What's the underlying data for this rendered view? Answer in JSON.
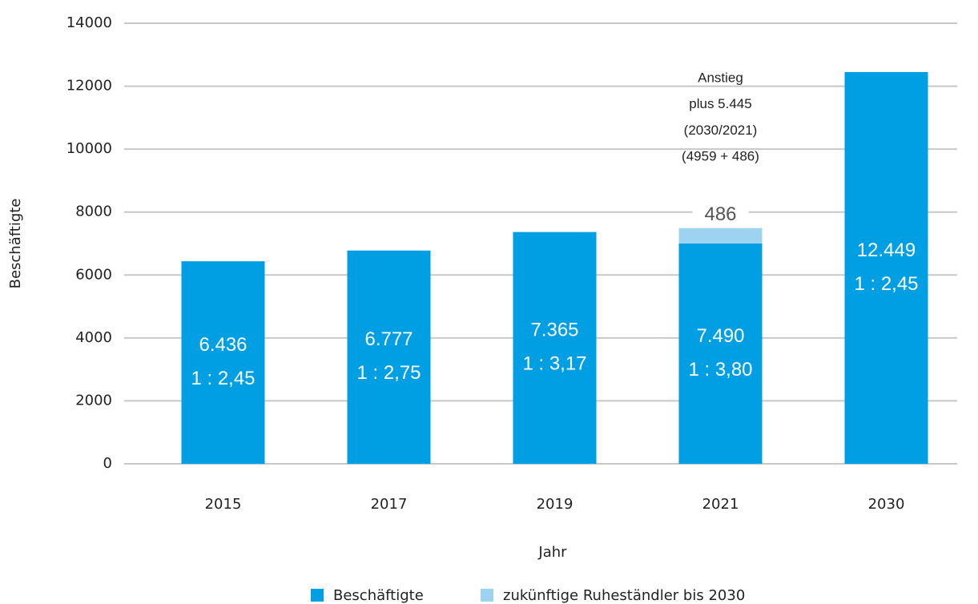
{
  "chart_data": {
    "type": "stacked_bar",
    "categories": [
      "2015",
      "2017",
      "2019",
      "2021",
      "2030"
    ],
    "series": [
      {
        "name": "Beschäftigte",
        "color": "#009fe3",
        "values": [
          6436,
          6777,
          7365,
          7004,
          12449
        ]
      },
      {
        "name": "zukünftige Ruheständler bis 2030",
        "color": "#9dd3f0",
        "values": [
          null,
          null,
          null,
          486,
          null
        ]
      }
    ],
    "bar_labels": [
      "6.436",
      "6.777",
      "7.365",
      "7.490",
      "12.449"
    ],
    "ratio_labels": [
      "1 : 2,45",
      "1 : 2,75",
      "1 : 3,17",
      "1 : 3,80",
      "1 : 2,45"
    ],
    "annotation": [
      "Anstieg",
      "plus 5.445",
      "(2030/2021)",
      "(4959 + 486)"
    ],
    "xlabel": "Jahr",
    "ylabel": "Beschäftigte",
    "ylim": [
      0,
      14000
    ],
    "yticks": [
      0,
      2000,
      4000,
      6000,
      8000,
      10000,
      12000,
      14000
    ],
    "grid": true,
    "legend": "bottom"
  }
}
